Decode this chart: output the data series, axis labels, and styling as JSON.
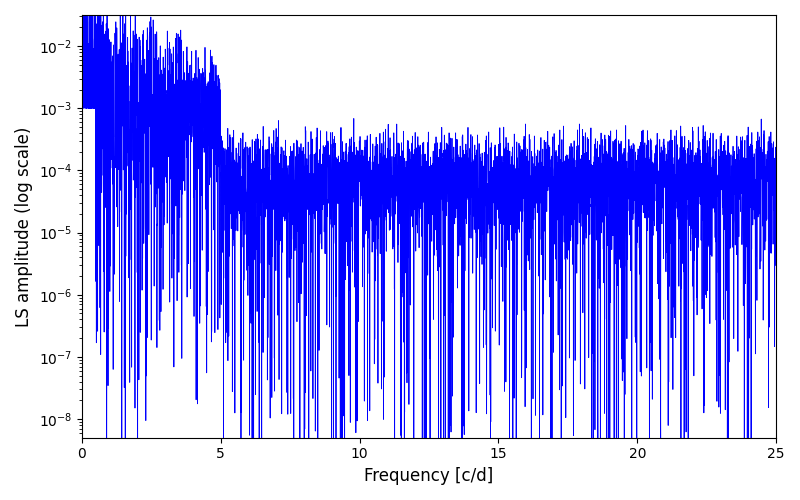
{
  "xlabel": "Frequency [c/d]",
  "ylabel": "LS amplitude (log scale)",
  "xlim": [
    0,
    25
  ],
  "ylim_log": [
    -8.3,
    -1.5
  ],
  "line_color": "#0000ff",
  "line_width": 0.6,
  "background_color": "#ffffff",
  "figsize": [
    8.0,
    5.0
  ],
  "dpi": 100,
  "yticks": [
    -8,
    -7,
    -6,
    -5,
    -4,
    -3,
    -2
  ],
  "xticks": [
    0,
    5,
    10,
    15,
    20,
    25
  ],
  "seed": 12345,
  "n_points": 5000,
  "freq_max": 25.0
}
